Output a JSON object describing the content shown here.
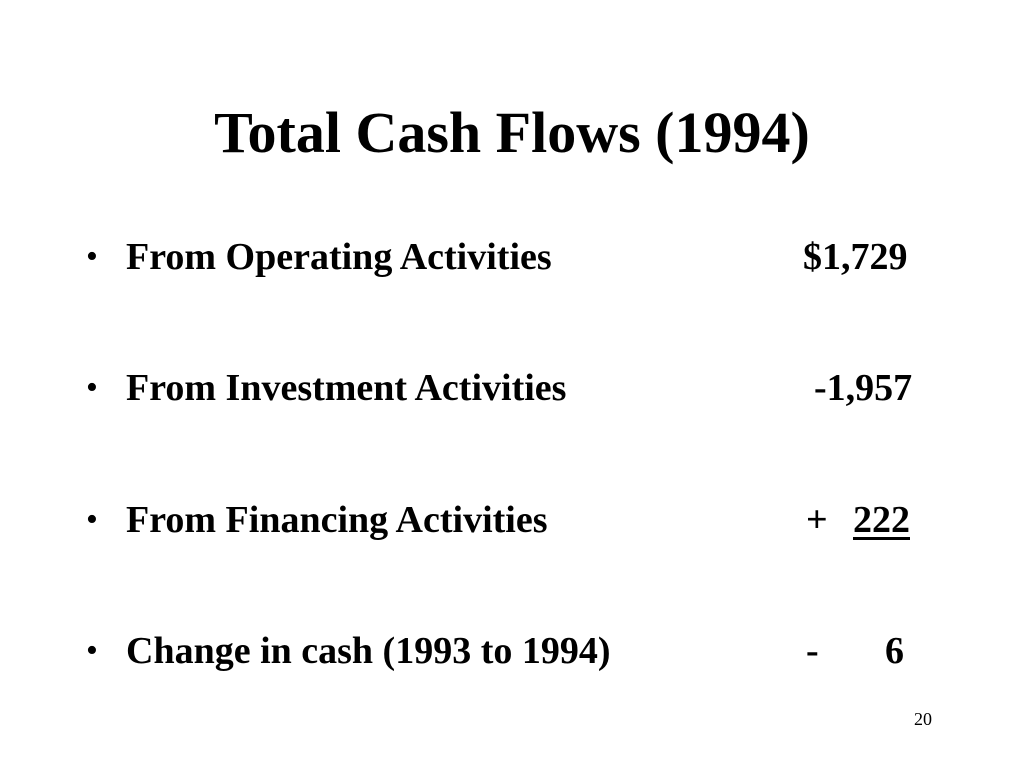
{
  "slide": {
    "title": "Total Cash Flows (1994)",
    "bullet_glyph": "•",
    "items": [
      {
        "label": "From Operating Activities",
        "value": "$1,729"
      },
      {
        "label": "From Investment Activities",
        "value": "-1,957"
      },
      {
        "label": "From Financing Activities",
        "sign": "+",
        "value": "222"
      },
      {
        "label": "Change in cash (1993 to 1994)",
        "sign": "-",
        "value": "6"
      }
    ],
    "page_number": "20"
  }
}
